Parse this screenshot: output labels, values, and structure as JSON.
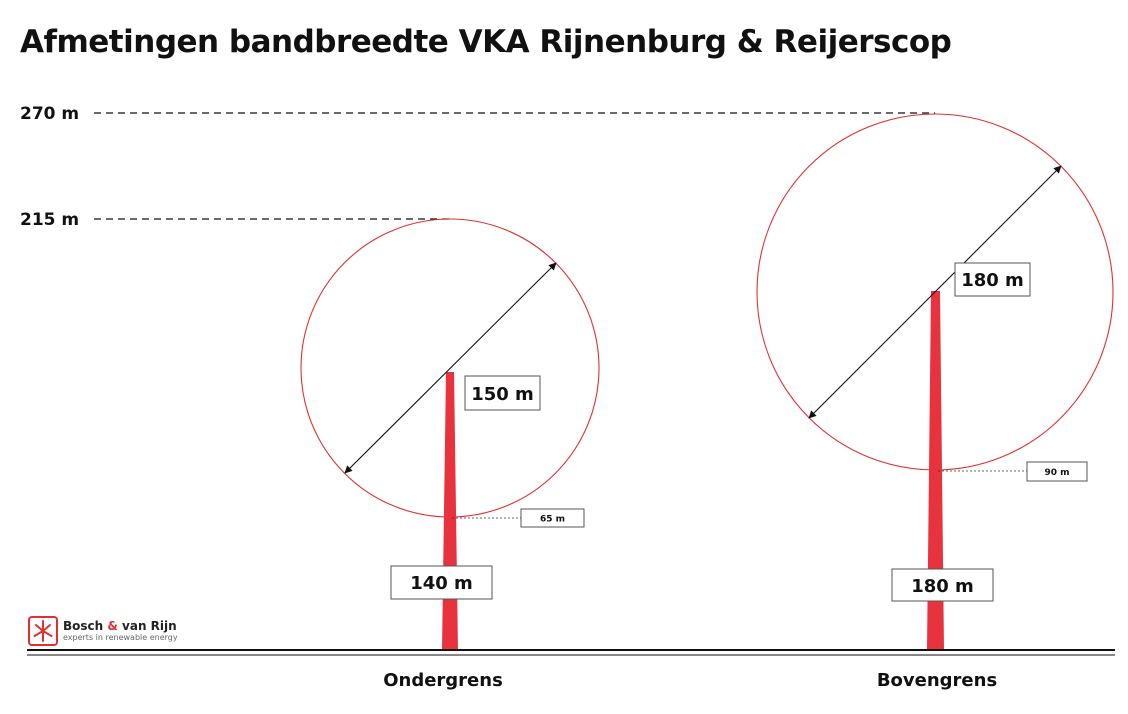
{
  "title": "Afmetingen bandbreedte VKA Rijnenburg & Reijerscop",
  "reference_heights": [
    "270 m",
    "215 m"
  ],
  "turbines": [
    {
      "name": "Ondergrens",
      "hub_height_label": "140 m",
      "rotor_diameter_label": "150 m",
      "tip_clearance_label": "65 m"
    },
    {
      "name": "Bovengrens",
      "hub_height_label": "180 m",
      "rotor_diameter_label": "180 m",
      "tip_clearance_label": "90 m"
    }
  ],
  "logo": {
    "name_part1": "Bosch ",
    "name_amp": "&",
    "name_part2": " van Rijn",
    "tagline": "experts in renewable energy"
  },
  "colors": {
    "tower": "#e8323e",
    "rotor_circle": "#e0312f",
    "text": "#111111"
  }
}
